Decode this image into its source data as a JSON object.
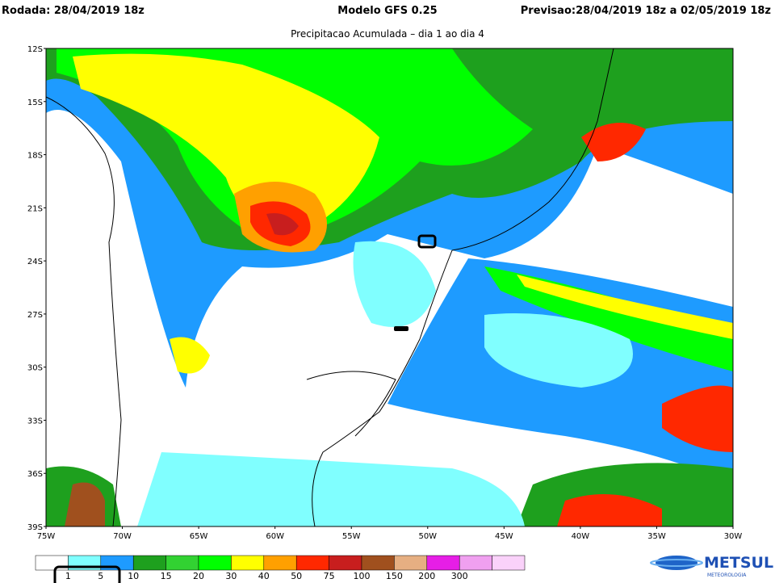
{
  "header": {
    "run": "Rodada: 28/04/2019 18z",
    "model": "Modelo GFS 0.25",
    "forecast": "Previsao:28/04/2019 18z a 02/05/2019 18z"
  },
  "title": "Precipitacao Acumulada – dia 1 ao dia 4",
  "lat_labels": [
    "12S",
    "15S",
    "18S",
    "21S",
    "24S",
    "27S",
    "30S",
    "33S",
    "36S",
    "39S"
  ],
  "lon_labels": [
    "75W",
    "70W",
    "65W",
    "60W",
    "55W",
    "50W",
    "45W",
    "40W",
    "35W",
    "30W"
  ],
  "legend": {
    "colors": [
      "#ffffff",
      "#80ffff",
      "#1e9bff",
      "#1ea01e",
      "#32d232",
      "#00ff00",
      "#ffff00",
      "#ffa000",
      "#ff2800",
      "#c81e1e",
      "#a0501e",
      "#e6af82",
      "#e61ee6",
      "#f0a0f0",
      "#fad2fa"
    ],
    "labels": [
      "1",
      "5",
      "10",
      "15",
      "20",
      "30",
      "40",
      "50",
      "75",
      "100",
      "150",
      "200",
      "300"
    ]
  },
  "logo": {
    "name": "METSUL",
    "tagline": "METEOROLOGIA"
  }
}
